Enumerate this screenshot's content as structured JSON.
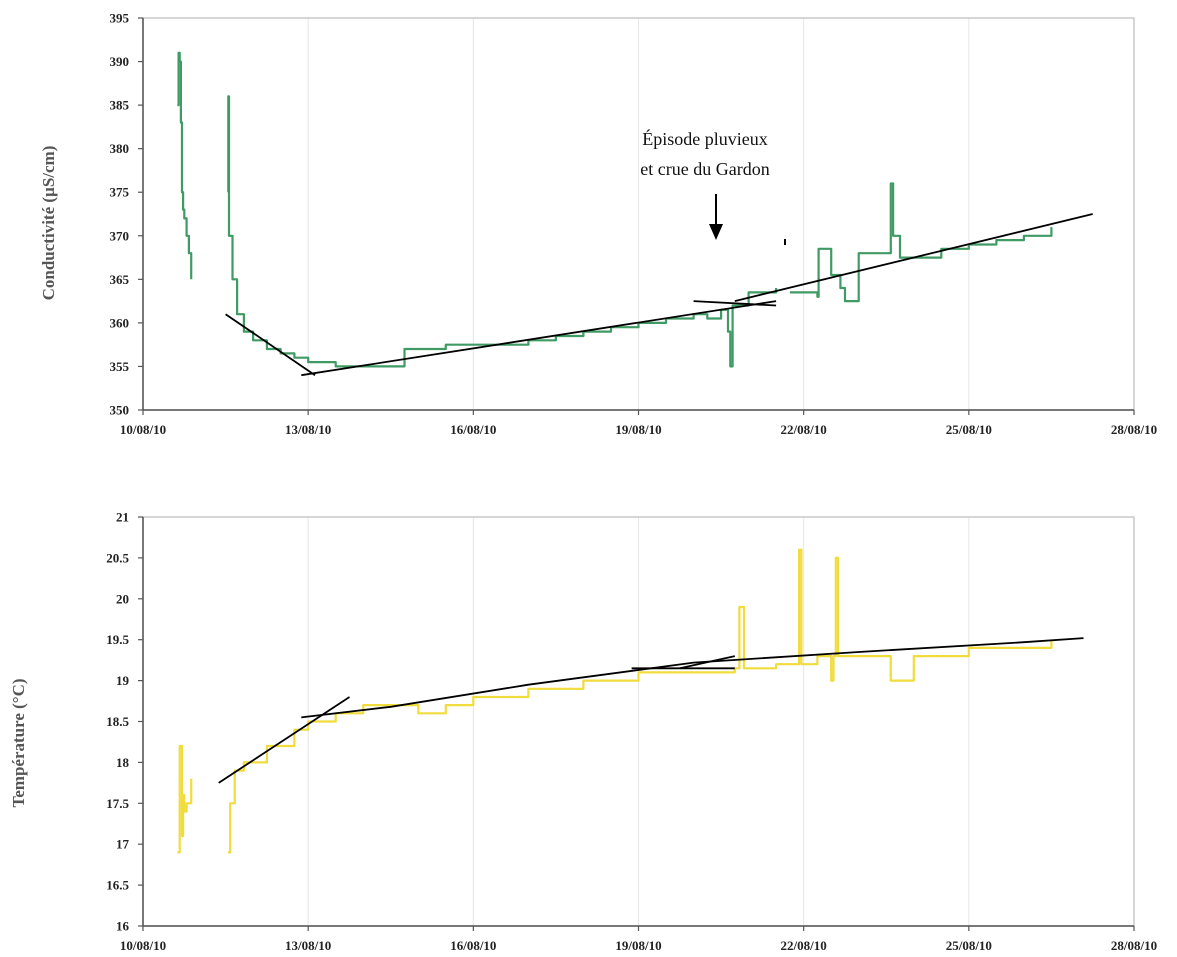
{
  "chart_data": [
    {
      "type": "line",
      "title": "",
      "xlabel": "",
      "ylabel": "Conductivité (µS/cm)",
      "xlim": [
        "10/08/10",
        "28/08/10"
      ],
      "ylim": [
        350,
        395
      ],
      "yticks": [
        "350",
        "355",
        "360",
        "365",
        "370",
        "375",
        "380",
        "385",
        "390",
        "395"
      ],
      "xticks": [
        "10/08/10",
        "13/08/10",
        "16/08/10",
        "19/08/10",
        "22/08/10",
        "25/08/10",
        "28/08/10"
      ],
      "grid": "vertical",
      "series_color": "#3f9a63",
      "trend_color": "#000000",
      "annotation": {
        "lines": [
          "Épisode pluvieux",
          "et crue du Gardon"
        ],
        "x": "20/08/10",
        "y": 371
      },
      "series": [
        {
          "x": [
            "10/08/10 15:00",
            "10/08/10 15:30",
            "10/08/10 16:00",
            "10/08/10 16:30",
            "10/08/10 17:00",
            "10/08/10 17:30",
            "10/08/10 18:00",
            "10/08/10 19:00",
            "10/08/10 20:00",
            "10/08/10 21:00"
          ],
          "y": [
            385,
            391,
            390,
            383,
            375,
            373,
            372,
            370,
            368,
            365
          ]
        },
        {
          "x": [
            "11/08/10 13:00",
            "11/08/10 13:10",
            "11/08/10 13:30",
            "11/08/10 15:00",
            "11/08/10 17:00",
            "11/08/10 20:00",
            "12/08/10 00:00",
            "12/08/10 06:00",
            "12/08/10 12:00",
            "12/08/10 18:00",
            "13/08/10 00:00",
            "13/08/10 12:00",
            "14/08/10 00:00",
            "14/08/10 12:00",
            "14/08/10 18:00",
            "15/08/10 12:00",
            "16/08/10 00:00",
            "16/08/10 12:00",
            "17/08/10 00:00",
            "17/08/10 12:00",
            "18/08/10 00:00",
            "18/08/10 12:00",
            "19/08/10 00:00",
            "19/08/10 12:00",
            "20/08/10 00:00",
            "20/08/10 06:00",
            "20/08/10 12:00",
            "20/08/10 15:00",
            "20/08/10 16:00",
            "20/08/10 17:00",
            "21/08/10 00:00",
            "21/08/10 12:00"
          ],
          "y": [
            375,
            386,
            370,
            365,
            361,
            359,
            358,
            357,
            356.5,
            356,
            355.5,
            355,
            355,
            355,
            357,
            357.5,
            357.5,
            357.5,
            358,
            358.5,
            359,
            359.5,
            360,
            360.5,
            361,
            360.5,
            361.5,
            359,
            355,
            362,
            363.5,
            364
          ]
        },
        {
          "x": [
            "21/08/10 18:00",
            "22/08/10 00:00",
            "22/08/10 06:00",
            "22/08/10 06:30",
            "22/08/10 12:00",
            "22/08/10 16:00",
            "22/08/10 18:00",
            "23/08/10 00:00",
            "23/08/10 12:00",
            "23/08/10 14:00",
            "23/08/10 15:00",
            "23/08/10 18:00",
            "24/08/10 00:00",
            "24/08/10 12:00",
            "25/08/10 00:00",
            "25/08/10 12:00",
            "26/08/10 00:00",
            "26/08/10 12:00"
          ],
          "y": [
            363.5,
            363.5,
            363,
            368.5,
            365.5,
            364,
            362.5,
            368,
            368,
            376,
            370,
            367.5,
            367.5,
            368.5,
            369,
            369.5,
            370,
            371
          ]
        }
      ],
      "trend_lines": [
        {
          "x": [
            "11/08/10 12:00",
            "13/08/10 03:00"
          ],
          "y": [
            361,
            354
          ]
        },
        {
          "x": [
            "12/08/10 21:00",
            "21/08/10 12:00"
          ],
          "y": [
            354,
            362.5
          ]
        },
        {
          "x": [
            "20/08/10 00:00",
            "21/08/10 12:00"
          ],
          "y": [
            362.5,
            362
          ]
        },
        {
          "x": [
            "20/08/10 18:00",
            "27/08/10 06:00"
          ],
          "y": [
            362.5,
            372.5
          ]
        }
      ]
    },
    {
      "type": "line",
      "title": "",
      "xlabel": "",
      "ylabel": "Température (°C)",
      "xlim": [
        "10/08/10",
        "28/08/10"
      ],
      "ylim": [
        16,
        21
      ],
      "yticks": [
        "16",
        "16.5",
        "17",
        "17.5",
        "18",
        "18.5",
        "19",
        "19.5",
        "20",
        "20.5",
        "21"
      ],
      "xticks": [
        "10/08/10",
        "13/08/10",
        "16/08/10",
        "19/08/10",
        "22/08/10",
        "25/08/10",
        "28/08/10"
      ],
      "grid": "vertical",
      "series_color": "#f0dc3c",
      "trend_color": "#000000",
      "series": [
        {
          "x": [
            "10/08/10 15:00",
            "10/08/10 16:00",
            "10/08/10 17:00",
            "10/08/10 17:30",
            "10/08/10 18:00",
            "10/08/10 19:00",
            "10/08/10 21:00"
          ],
          "y": [
            16.9,
            18.2,
            17.1,
            17.6,
            17.4,
            17.5,
            17.8
          ]
        },
        {
          "x": [
            "11/08/10 13:00",
            "11/08/10 14:00",
            "11/08/10 16:00",
            "11/08/10 20:00",
            "12/08/10 06:00",
            "12/08/10 18:00",
            "13/08/10 00:00",
            "13/08/10 12:00",
            "14/08/10 00:00",
            "15/08/10 00:00",
            "15/08/10 12:00",
            "16/08/10 00:00",
            "17/08/10 00:00",
            "18/08/10 00:00",
            "19/08/10 00:00",
            "20/08/10 00:00",
            "20/08/10 18:00",
            "20/08/10 20:00",
            "20/08/10 22:00",
            "21/08/10 12:00",
            "21/08/10 21:00",
            "21/08/10 22:00",
            "21/08/10 23:00",
            "22/08/10 06:00",
            "22/08/10 12:00",
            "22/08/10 13:00",
            "22/08/10 14:00",
            "22/08/10 15:00",
            "22/08/10 18:00",
            "23/08/10 00:00",
            "23/08/10 12:00",
            "23/08/10 14:00",
            "24/08/10 00:00",
            "25/08/10 00:00",
            "26/08/10 00:00",
            "26/08/10 12:00"
          ],
          "y": [
            16.9,
            17.5,
            17.9,
            18.0,
            18.2,
            18.4,
            18.5,
            18.6,
            18.7,
            18.6,
            18.7,
            18.8,
            18.9,
            19.0,
            19.1,
            19.1,
            19.15,
            19.9,
            19.15,
            19.2,
            19.2,
            20.6,
            19.2,
            19.3,
            19.0,
            19.3,
            20.5,
            19.3,
            19.3,
            19.3,
            19.3,
            19.0,
            19.3,
            19.4,
            19.4,
            19.5
          ]
        }
      ],
      "trend_lines": [
        {
          "x": [
            "11/08/10 09:00",
            "13/08/10 18:00"
          ],
          "y": [
            17.75,
            18.8
          ]
        },
        {
          "x": [
            "12/08/10 21:00",
            "14/08/10 12:00",
            "17/08/10 00:00",
            "20/08/10 00:00",
            "23/08/10 00:00",
            "26/08/10 00:00",
            "27/08/10 02:00"
          ],
          "y": [
            18.55,
            18.68,
            18.95,
            19.22,
            19.35,
            19.47,
            19.52
          ]
        },
        {
          "x": [
            "18/08/10 21:00",
            "20/08/10 18:00"
          ],
          "y": [
            19.15,
            19.15
          ]
        },
        {
          "x": [
            "19/08/10 18:00",
            "20/08/10 18:00"
          ],
          "y": [
            19.15,
            19.3
          ]
        }
      ]
    }
  ]
}
